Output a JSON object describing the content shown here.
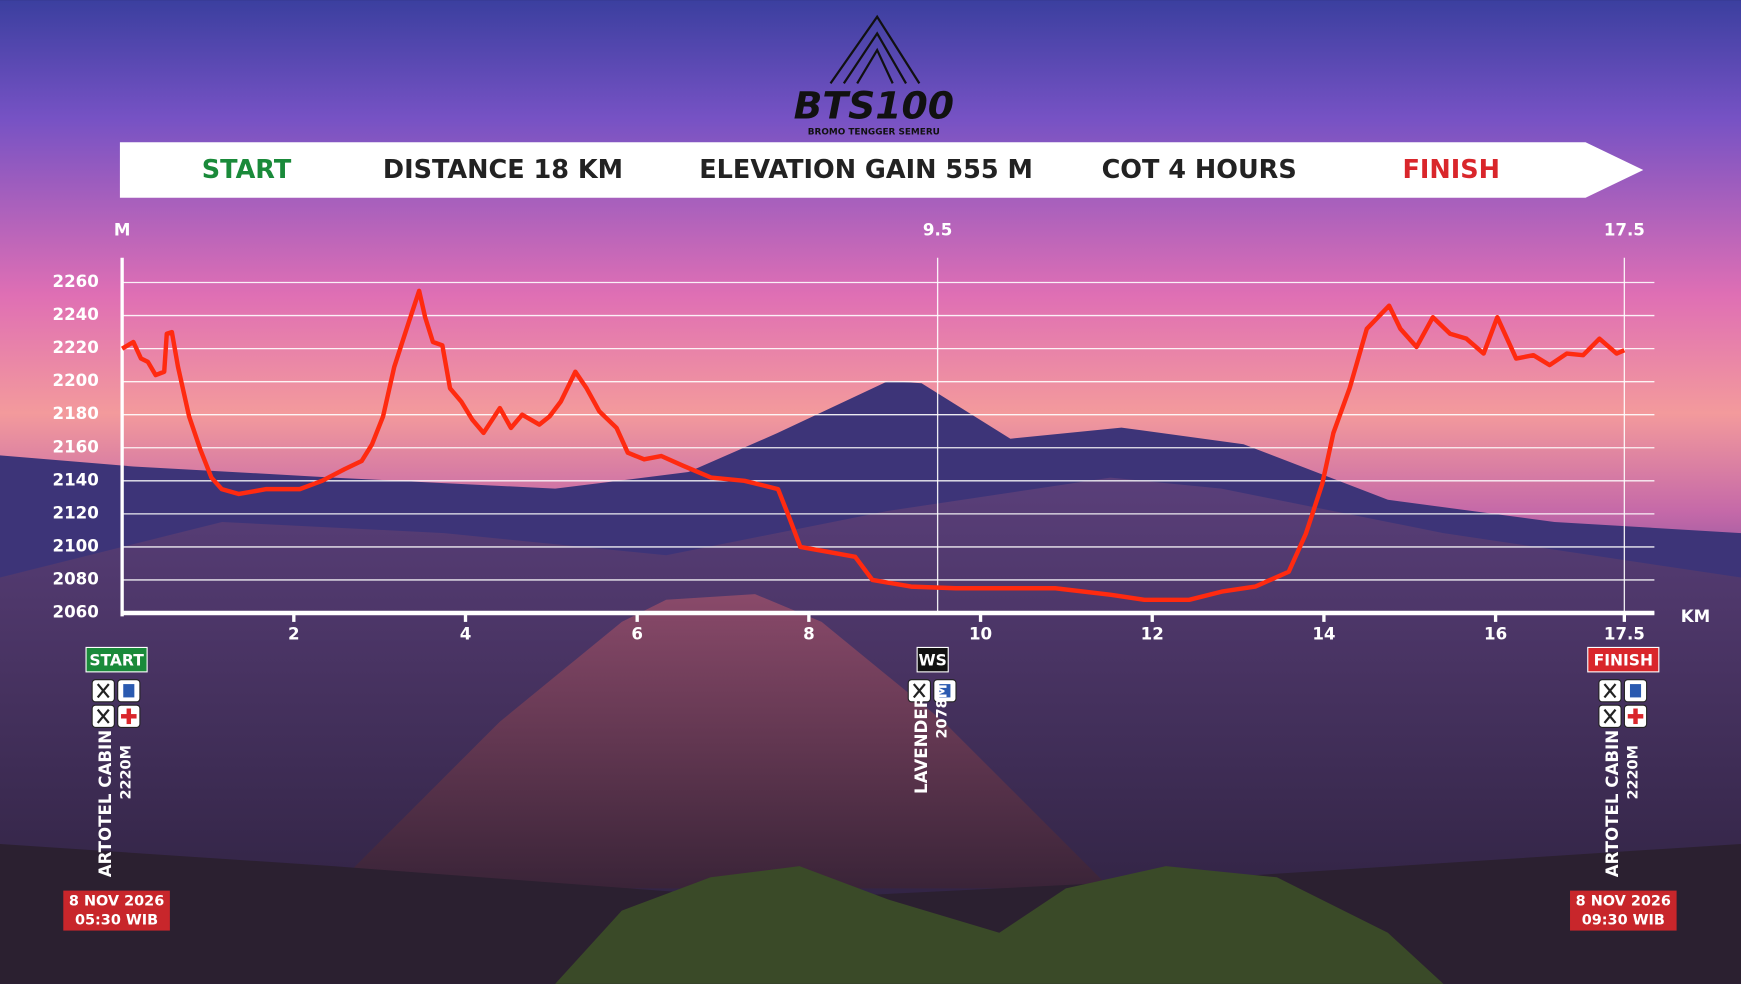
{
  "logo": {
    "title": "BTS100",
    "subtitle": "BROMO TENGGER SEMERU"
  },
  "banner": [
    "START",
    "DISTANCE 18 KM",
    "ELEVATION GAIN 555 M",
    "COT 4 HOURS",
    "FINISH"
  ],
  "chart_data": {
    "type": "line",
    "y_label": "M",
    "x_label": "KM",
    "color": "#ff2a10",
    "grid": true,
    "xlim": [
      0,
      17.85
    ],
    "ylim": [
      2060,
      2275
    ],
    "xticks": [
      2,
      4,
      6,
      8,
      10,
      12,
      14,
      16,
      17.5
    ],
    "yticks": [
      2060,
      2080,
      2100,
      2120,
      2140,
      2160,
      2180,
      2200,
      2220,
      2240,
      2260
    ],
    "vlines": [
      9.5,
      17.5
    ],
    "x": [
      0,
      0.13,
      0.22,
      0.3,
      0.39,
      0.49,
      0.52,
      0.58,
      0.65,
      0.78,
      0.91,
      1.04,
      1.16,
      1.36,
      1.68,
      2.07,
      2.33,
      2.59,
      2.79,
      2.91,
      3.04,
      3.17,
      3.34,
      3.46,
      3.53,
      3.62,
      3.73,
      3.82,
      3.95,
      4.08,
      4.21,
      4.4,
      4.53,
      4.66,
      4.86,
      4.98,
      5.11,
      5.28,
      5.41,
      5.56,
      5.76,
      5.89,
      6.08,
      6.28,
      6.54,
      6.86,
      7.25,
      7.64,
      7.77,
      7.9,
      8.22,
      8.54,
      8.74,
      9.19,
      9.71,
      10.23,
      10.87,
      11.52,
      11.91,
      12.43,
      12.81,
      13.2,
      13.59,
      13.79,
      13.98,
      14.11,
      14.3,
      14.5,
      14.63,
      14.76,
      14.89,
      15.08,
      15.27,
      15.47,
      15.66,
      15.86,
      16.02,
      16.24,
      16.44,
      16.63,
      16.83,
      17.02,
      17.21,
      17.41,
      17.5
    ],
    "values": [
      2220,
      2224,
      2214,
      2212,
      2204,
      2206,
      2229,
      2230,
      2209,
      2179,
      2159,
      2142,
      2135,
      2132,
      2135,
      2135,
      2140,
      2147,
      2152,
      2162,
      2179,
      2209,
      2236,
      2255,
      2239,
      2224,
      2222,
      2196,
      2188,
      2177,
      2169,
      2184,
      2172,
      2180,
      2174,
      2179,
      2188,
      2206,
      2196,
      2182,
      2172,
      2157,
      2153,
      2155,
      2149,
      2142,
      2140,
      2135,
      2118,
      2100,
      2097,
      2094,
      2080,
      2076,
      2075,
      2075,
      2075,
      2071,
      2068,
      2068,
      2073,
      2076,
      2085,
      2108,
      2138,
      2169,
      2196,
      2232,
      2239,
      2246,
      2232,
      2221,
      2239,
      2229,
      2226,
      2217,
      2239,
      2214,
      2216,
      2210,
      2217,
      2216,
      2226,
      2217,
      2219
    ]
  },
  "stations": [
    {
      "badge": "START",
      "name": "ARTOTEL CABIN",
      "elevation": "2220M",
      "date": "8 NOV 2026",
      "time": "05:30 WIB"
    },
    {
      "badge": "WS",
      "name": "LAVENDER",
      "elevation": "2078M"
    },
    {
      "badge": "FINISH",
      "name": "ARTOTEL CABIN",
      "elevation": "2220M",
      "date": "8 NOV 2026",
      "time": "09:30 WIB"
    }
  ]
}
